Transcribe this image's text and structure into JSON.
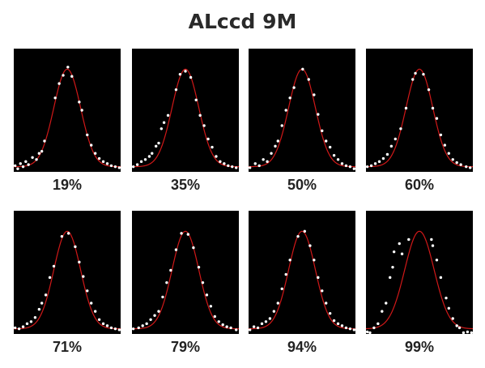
{
  "figure": {
    "title": "ALccd 9M"
  },
  "colors": {
    "background": "#000000",
    "curve": "#d01818",
    "points": "#ffffff"
  },
  "chart_data": [
    {
      "type": "scatter",
      "label": "19%",
      "xlim": [
        -4,
        4
      ],
      "ylim": [
        0,
        1.2
      ],
      "grid": false,
      "fit": {
        "kind": "gaussian",
        "mean": 0,
        "sd": 1,
        "peak": 1.0,
        "baseline": 0.05
      },
      "points": [
        [
          -3.9,
          0.06
        ],
        [
          -3.7,
          0.03
        ],
        [
          -3.5,
          0.08
        ],
        [
          -3.3,
          0.05
        ],
        [
          -3.1,
          0.1
        ],
        [
          -2.9,
          0.07
        ],
        [
          -2.6,
          0.14
        ],
        [
          -2.3,
          0.12
        ],
        [
          -2.1,
          0.18
        ],
        [
          -1.9,
          0.2
        ],
        [
          -1.7,
          0.3
        ],
        [
          -0.9,
          0.72
        ],
        [
          -0.6,
          0.86
        ],
        [
          -0.3,
          0.94
        ],
        [
          0.05,
          1.02
        ],
        [
          0.35,
          0.93
        ],
        [
          0.9,
          0.68
        ],
        [
          1.1,
          0.6
        ],
        [
          1.5,
          0.36
        ],
        [
          1.8,
          0.26
        ],
        [
          2.1,
          0.18
        ],
        [
          2.4,
          0.13
        ],
        [
          2.7,
          0.1
        ],
        [
          3.0,
          0.08
        ],
        [
          3.3,
          0.06
        ],
        [
          3.6,
          0.05
        ],
        [
          3.9,
          0.04
        ]
      ]
    },
    {
      "type": "scatter",
      "label": "35%",
      "xlim": [
        -4,
        4
      ],
      "ylim": [
        0,
        1.2
      ],
      "grid": false,
      "fit": {
        "kind": "gaussian",
        "mean": 0,
        "sd": 1,
        "peak": 1.0,
        "baseline": 0.05
      },
      "points": [
        [
          -3.9,
          0.05
        ],
        [
          -3.6,
          0.07
        ],
        [
          -3.3,
          0.1
        ],
        [
          -3.0,
          0.12
        ],
        [
          -2.7,
          0.15
        ],
        [
          -2.5,
          0.18
        ],
        [
          -2.2,
          0.25
        ],
        [
          -2.0,
          0.28
        ],
        [
          -1.8,
          0.42
        ],
        [
          -1.6,
          0.48
        ],
        [
          -1.3,
          0.55
        ],
        [
          -0.7,
          0.8
        ],
        [
          -0.4,
          0.95
        ],
        [
          0.0,
          0.98
        ],
        [
          0.4,
          0.92
        ],
        [
          0.8,
          0.7
        ],
        [
          1.1,
          0.55
        ],
        [
          1.4,
          0.45
        ],
        [
          1.7,
          0.32
        ],
        [
          2.0,
          0.24
        ],
        [
          2.3,
          0.15
        ],
        [
          2.6,
          0.1
        ],
        [
          2.9,
          0.08
        ],
        [
          3.2,
          0.06
        ],
        [
          3.5,
          0.05
        ],
        [
          3.8,
          0.04
        ]
      ]
    },
    {
      "type": "scatter",
      "label": "50%",
      "xlim": [
        -4,
        4
      ],
      "ylim": [
        0,
        1.2
      ],
      "grid": false,
      "fit": {
        "kind": "gaussian",
        "mean": 0,
        "sd": 1,
        "peak": 1.0,
        "baseline": 0.05
      },
      "points": [
        [
          -3.9,
          0.04
        ],
        [
          -3.5,
          0.08
        ],
        [
          -3.2,
          0.06
        ],
        [
          -2.9,
          0.12
        ],
        [
          -2.6,
          0.1
        ],
        [
          -2.3,
          0.18
        ],
        [
          -2.0,
          0.25
        ],
        [
          -1.8,
          0.3
        ],
        [
          -1.5,
          0.45
        ],
        [
          -1.2,
          0.6
        ],
        [
          -0.9,
          0.72
        ],
        [
          -0.6,
          0.82
        ],
        [
          0.05,
          1.0
        ],
        [
          0.5,
          0.9
        ],
        [
          0.9,
          0.75
        ],
        [
          1.2,
          0.56
        ],
        [
          1.5,
          0.4
        ],
        [
          1.8,
          0.3
        ],
        [
          2.1,
          0.24
        ],
        [
          2.4,
          0.16
        ],
        [
          2.7,
          0.12
        ],
        [
          3.0,
          0.08
        ],
        [
          3.3,
          0.06
        ],
        [
          3.6,
          0.05
        ],
        [
          3.9,
          0.03
        ]
      ]
    },
    {
      "type": "scatter",
      "label": "60%",
      "xlim": [
        -4,
        4
      ],
      "ylim": [
        0,
        1.2
      ],
      "grid": false,
      "fit": {
        "kind": "gaussian",
        "mean": 0,
        "sd": 1,
        "peak": 1.0,
        "baseline": 0.05
      },
      "points": [
        [
          -3.9,
          0.05
        ],
        [
          -3.6,
          0.06
        ],
        [
          -3.3,
          0.08
        ],
        [
          -3.0,
          0.1
        ],
        [
          -2.7,
          0.13
        ],
        [
          -2.4,
          0.17
        ],
        [
          -2.1,
          0.25
        ],
        [
          -1.8,
          0.32
        ],
        [
          -1.4,
          0.42
        ],
        [
          -1.0,
          0.62
        ],
        [
          -0.5,
          0.9
        ],
        [
          -0.3,
          0.96
        ],
        [
          0.3,
          0.95
        ],
        [
          0.7,
          0.8
        ],
        [
          1.0,
          0.62
        ],
        [
          1.3,
          0.52
        ],
        [
          1.6,
          0.36
        ],
        [
          1.9,
          0.26
        ],
        [
          2.2,
          0.18
        ],
        [
          2.5,
          0.12
        ],
        [
          2.8,
          0.09
        ],
        [
          3.1,
          0.07
        ],
        [
          3.5,
          0.05
        ],
        [
          3.8,
          0.04
        ]
      ]
    },
    {
      "type": "scatter",
      "label": "71%",
      "xlim": [
        -4,
        4
      ],
      "ylim": [
        0,
        1.2
      ],
      "grid": false,
      "fit": {
        "kind": "gaussian",
        "mean": 0,
        "sd": 1,
        "peak": 1.0,
        "baseline": 0.05
      },
      "points": [
        [
          -3.9,
          0.06
        ],
        [
          -3.6,
          0.05
        ],
        [
          -3.3,
          0.07
        ],
        [
          -3.0,
          0.1
        ],
        [
          -2.7,
          0.12
        ],
        [
          -2.4,
          0.16
        ],
        [
          -2.1,
          0.24
        ],
        [
          -1.9,
          0.3
        ],
        [
          -1.6,
          0.38
        ],
        [
          -1.3,
          0.55
        ],
        [
          -1.0,
          0.66
        ],
        [
          -0.4,
          0.95
        ],
        [
          0.1,
          0.98
        ],
        [
          0.6,
          0.85
        ],
        [
          0.9,
          0.7
        ],
        [
          1.2,
          0.56
        ],
        [
          1.5,
          0.42
        ],
        [
          1.8,
          0.3
        ],
        [
          2.1,
          0.22
        ],
        [
          2.4,
          0.14
        ],
        [
          2.7,
          0.1
        ],
        [
          3.0,
          0.08
        ],
        [
          3.3,
          0.06
        ],
        [
          3.6,
          0.05
        ],
        [
          3.9,
          0.04
        ]
      ]
    },
    {
      "type": "scatter",
      "label": "79%",
      "xlim": [
        -4,
        4
      ],
      "ylim": [
        0,
        1.2
      ],
      "grid": false,
      "fit": {
        "kind": "gaussian",
        "mean": 0,
        "sd": 1,
        "peak": 1.0,
        "baseline": 0.05
      },
      "points": [
        [
          -3.9,
          0.05
        ],
        [
          -3.5,
          0.06
        ],
        [
          -3.2,
          0.08
        ],
        [
          -2.9,
          0.1
        ],
        [
          -2.6,
          0.14
        ],
        [
          -2.3,
          0.18
        ],
        [
          -2.0,
          0.22
        ],
        [
          -1.7,
          0.36
        ],
        [
          -1.4,
          0.5
        ],
        [
          -1.1,
          0.62
        ],
        [
          -0.7,
          0.82
        ],
        [
          -0.3,
          0.98
        ],
        [
          0.2,
          0.97
        ],
        [
          0.6,
          0.84
        ],
        [
          1.0,
          0.65
        ],
        [
          1.3,
          0.5
        ],
        [
          1.6,
          0.38
        ],
        [
          1.9,
          0.27
        ],
        [
          2.2,
          0.17
        ],
        [
          2.5,
          0.12
        ],
        [
          2.8,
          0.09
        ],
        [
          3.1,
          0.07
        ],
        [
          3.4,
          0.06
        ],
        [
          3.8,
          0.04
        ]
      ]
    },
    {
      "type": "scatter",
      "label": "94%",
      "xlim": [
        -4,
        4
      ],
      "ylim": [
        0,
        1.2
      ],
      "grid": false,
      "fit": {
        "kind": "gaussian",
        "mean": 0,
        "sd": 1,
        "peak": 1.0,
        "baseline": 0.05
      },
      "points": [
        [
          -3.9,
          0.04
        ],
        [
          -3.6,
          0.07
        ],
        [
          -3.3,
          0.06
        ],
        [
          -3.0,
          0.1
        ],
        [
          -2.7,
          0.12
        ],
        [
          -2.4,
          0.15
        ],
        [
          -2.1,
          0.22
        ],
        [
          -1.8,
          0.3
        ],
        [
          -1.5,
          0.44
        ],
        [
          -1.2,
          0.58
        ],
        [
          -0.9,
          0.72
        ],
        [
          -0.3,
          0.95
        ],
        [
          0.2,
          1.0
        ],
        [
          0.6,
          0.86
        ],
        [
          0.9,
          0.72
        ],
        [
          1.2,
          0.55
        ],
        [
          1.5,
          0.42
        ],
        [
          1.8,
          0.3
        ],
        [
          2.1,
          0.2
        ],
        [
          2.4,
          0.13
        ],
        [
          2.7,
          0.1
        ],
        [
          3.0,
          0.08
        ],
        [
          3.3,
          0.06
        ],
        [
          3.6,
          0.05
        ],
        [
          3.9,
          0.04
        ]
      ]
    },
    {
      "type": "scatter",
      "label": "99%",
      "xlim": [
        -4,
        4
      ],
      "ylim": [
        0,
        1.2
      ],
      "grid": false,
      "fit": {
        "kind": "gaussian",
        "mean": 0,
        "sd": 1.1,
        "peak": 1.0,
        "baseline": 0.05
      },
      "points": [
        [
          -3.9,
          0.02
        ],
        [
          -3.7,
          -0.04
        ],
        [
          -3.4,
          0.06
        ],
        [
          -3.1,
          0.1
        ],
        [
          -2.8,
          0.22
        ],
        [
          -2.5,
          0.3
        ],
        [
          -2.2,
          0.55
        ],
        [
          -2.0,
          0.65
        ],
        [
          -1.9,
          0.8
        ],
        [
          -1.5,
          0.88
        ],
        [
          -1.3,
          0.78
        ],
        [
          -0.8,
          0.92
        ],
        [
          0.9,
          0.92
        ],
        [
          1.0,
          0.86
        ],
        [
          1.3,
          0.72
        ],
        [
          1.6,
          0.55
        ],
        [
          2.0,
          0.35
        ],
        [
          2.2,
          0.25
        ],
        [
          2.5,
          0.15
        ],
        [
          2.8,
          0.08
        ],
        [
          3.0,
          0.06
        ],
        [
          3.3,
          -0.02
        ],
        [
          3.6,
          0.02
        ],
        [
          3.9,
          -0.04
        ]
      ]
    }
  ]
}
